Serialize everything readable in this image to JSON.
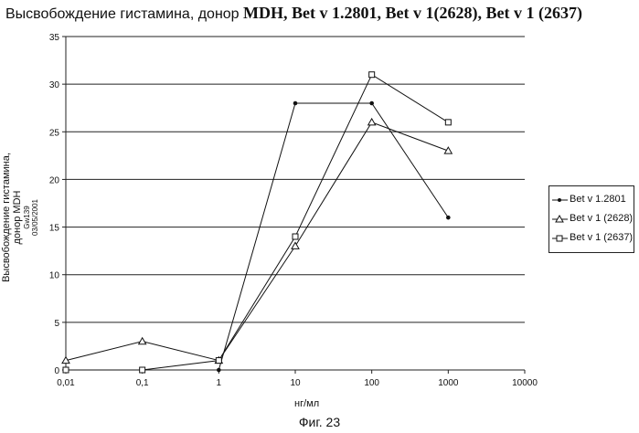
{
  "title_part1": "Высвобождение гистамина, донор ",
  "title_part2": "MDH, Bet v 1.2801, Bet v 1(2628), Bet v 1 (2637)",
  "caption": "Фиг. 23",
  "chart_data": {
    "type": "line",
    "x_scale": "log",
    "xlabel": "нг/мл",
    "ylabel_lines": [
      "Высвобождение гистамина,",
      "донор MDH"
    ],
    "ylabel_small": [
      "Gw139",
      "03/05/2001"
    ],
    "xlim": [
      0.01,
      10000
    ],
    "ylim": [
      0,
      35
    ],
    "y_ticks": [
      0,
      5,
      10,
      15,
      20,
      25,
      30,
      35
    ],
    "x_ticks": [
      0.01,
      0.1,
      1,
      10,
      100,
      1000,
      10000
    ],
    "x_tick_labels": [
      "0,01",
      "0,1",
      "1",
      "10",
      "100",
      "1000",
      "10000"
    ],
    "grid": "horizontal",
    "legend_position": "right",
    "series": [
      {
        "name": "Bet v 1.2801",
        "marker": "filled-circle",
        "color": "#111111",
        "x": [
          1,
          10,
          100,
          1000
        ],
        "y": [
          0,
          28,
          28,
          16
        ]
      },
      {
        "name": "Bet v 1 (2628)",
        "marker": "triangle",
        "color": "#111111",
        "x": [
          0.01,
          0.1,
          1,
          10,
          100,
          1000
        ],
        "y": [
          1,
          3,
          1,
          13,
          26,
          23
        ]
      },
      {
        "name": "Bet v 1 (2637)",
        "marker": "square",
        "color": "#111111",
        "x": [
          0.01,
          0.1,
          1,
          10,
          100,
          1000
        ],
        "y": [
          0,
          0,
          1,
          14,
          31,
          26
        ]
      }
    ]
  }
}
